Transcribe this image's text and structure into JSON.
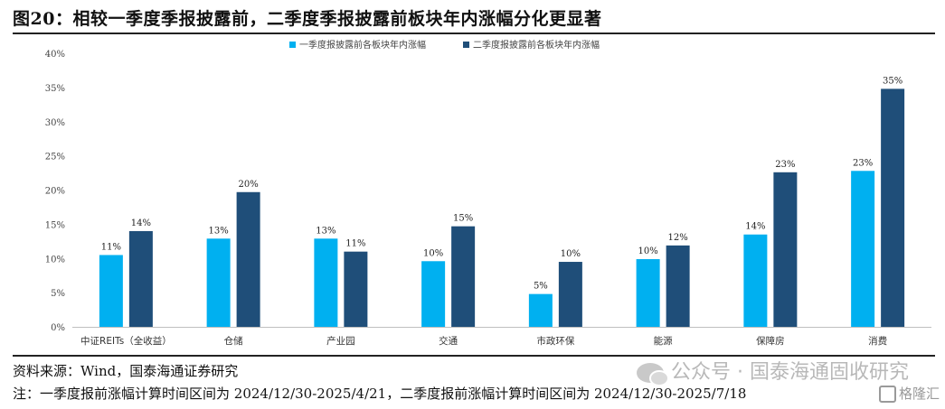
{
  "figure_title": "图20：相较一季度季报披露前，二季度季报披露前板块年内涨幅分化更显著",
  "chart_data": {
    "type": "bar",
    "categories": [
      "中证REITs（全收益）",
      "仓储",
      "产业园",
      "交通",
      "市政环保",
      "能源",
      "保障房",
      "消费"
    ],
    "series": [
      {
        "name": "一季度报披露前各板块年内涨幅",
        "color": "#00b0f0",
        "values": [
          10.5,
          12.9,
          12.9,
          9.6,
          4.8,
          9.9,
          13.5,
          22.8
        ],
        "labels": [
          "11%",
          "13%",
          "13%",
          "10%",
          "5%",
          "10%",
          "14%",
          "23%"
        ]
      },
      {
        "name": "二季度报披露前各板块年内涨幅",
        "color": "#1f4e79",
        "values": [
          14.0,
          19.7,
          11.0,
          14.7,
          9.5,
          11.9,
          22.6,
          34.8
        ],
        "labels": [
          "14%",
          "20%",
          "11%",
          "15%",
          "10%",
          "12%",
          "23%",
          "35%"
        ]
      }
    ],
    "y_ticks": [
      "0%",
      "5%",
      "10%",
      "15%",
      "20%",
      "25%",
      "30%",
      "35%",
      "40%"
    ],
    "ylim": [
      0,
      40
    ],
    "legend_position": "top-center",
    "grid": false
  },
  "source_note": "资料来源：Wind，国泰海通证券研究",
  "footnote": "注：一季度报前涨幅计算时间区间为 2024/12/30-2025/4/21，二季度报前涨幅计算时间区间为 2024/12/30-2025/7/18",
  "watermark_text": "公众号 · 国泰海通固收研究",
  "logo_text": "格隆汇"
}
